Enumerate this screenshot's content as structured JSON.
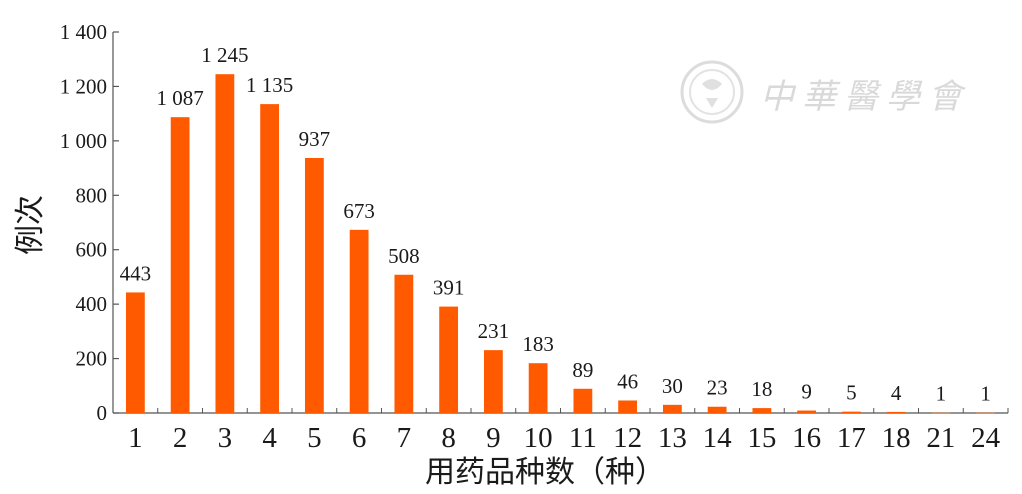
{
  "chart_data": {
    "type": "bar",
    "categories": [
      "1",
      "2",
      "3",
      "4",
      "5",
      "6",
      "7",
      "8",
      "9",
      "10",
      "11",
      "12",
      "13",
      "14",
      "15",
      "16",
      "17",
      "18",
      "21",
      "24"
    ],
    "values": [
      443,
      1087,
      1245,
      1135,
      937,
      673,
      508,
      391,
      231,
      183,
      89,
      46,
      30,
      23,
      18,
      9,
      5,
      4,
      1,
      1
    ],
    "value_labels": [
      "443",
      "1 087",
      "1 245",
      "1 135",
      "937",
      "673",
      "508",
      "391",
      "231",
      "183",
      "89",
      "46",
      "30",
      "23",
      "18",
      "9",
      "5",
      "4",
      "1",
      "1"
    ],
    "ylabel": "例次",
    "xlabel": "用药品种数（种）",
    "ylim": [
      0,
      1400
    ],
    "yticks": [
      0,
      200,
      400,
      600,
      800,
      1000,
      1200,
      1400
    ],
    "ytick_labels": [
      "0",
      "200",
      "400",
      "600",
      "800",
      "1 000",
      "1 200",
      "1 400"
    ],
    "bar_color": "#ff5a00",
    "grid": false
  },
  "watermark": {
    "text": "中華醫學會",
    "logo": "cma-seal-logo"
  }
}
